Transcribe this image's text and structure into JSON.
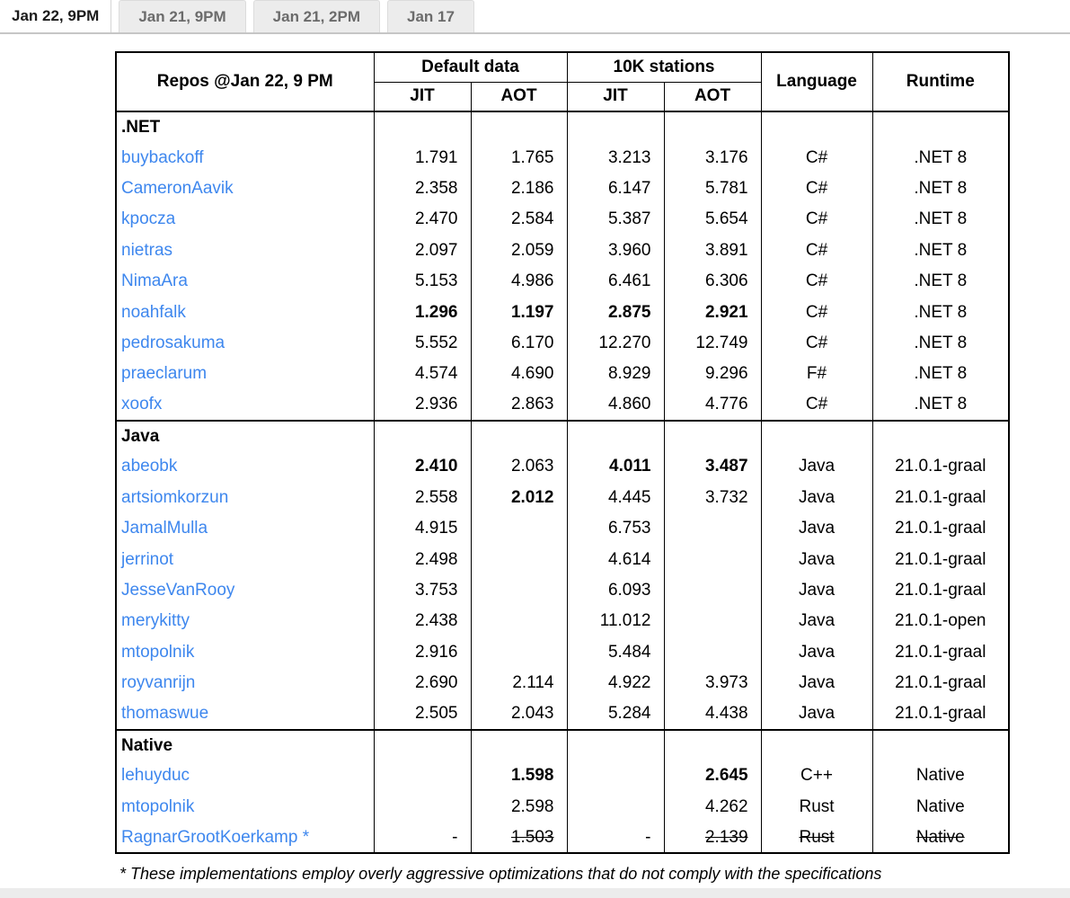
{
  "colors": {
    "link": "#3e87ee"
  },
  "tabs": [
    {
      "label": "Jan 22, 9PM",
      "active": true
    },
    {
      "label": "Jan 21, 9PM",
      "active": false
    },
    {
      "label": "Jan 21, 2PM",
      "active": false
    },
    {
      "label": "Jan 17",
      "active": false
    }
  ],
  "table": {
    "header": {
      "repos": "Repos @Jan 22, 9 PM",
      "group1": "Default data",
      "group2": "10K stations",
      "jit": "JIT",
      "aot": "AOT",
      "language": "Language",
      "runtime": "Runtime"
    },
    "sections": [
      {
        "name": ".NET",
        "rows": [
          {
            "repo": "buybackoff",
            "values": [
              "1.791",
              "1.765",
              "3.213",
              "3.176"
            ],
            "bold": [
              0,
              0,
              0,
              0
            ],
            "language": "C#",
            "runtime": ".NET 8"
          },
          {
            "repo": "CameronAavik",
            "values": [
              "2.358",
              "2.186",
              "6.147",
              "5.781"
            ],
            "bold": [
              0,
              0,
              0,
              0
            ],
            "language": "C#",
            "runtime": ".NET 8"
          },
          {
            "repo": "kpocza",
            "values": [
              "2.470",
              "2.584",
              "5.387",
              "5.654"
            ],
            "bold": [
              0,
              0,
              0,
              0
            ],
            "language": "C#",
            "runtime": ".NET 8"
          },
          {
            "repo": "nietras",
            "values": [
              "2.097",
              "2.059",
              "3.960",
              "3.891"
            ],
            "bold": [
              0,
              0,
              0,
              0
            ],
            "language": "C#",
            "runtime": ".NET 8"
          },
          {
            "repo": "NimaAra",
            "values": [
              "5.153",
              "4.986",
              "6.461",
              "6.306"
            ],
            "bold": [
              0,
              0,
              0,
              0
            ],
            "language": "C#",
            "runtime": ".NET 8"
          },
          {
            "repo": "noahfalk",
            "values": [
              "1.296",
              "1.197",
              "2.875",
              "2.921"
            ],
            "bold": [
              1,
              1,
              1,
              1
            ],
            "language": "C#",
            "runtime": ".NET 8"
          },
          {
            "repo": "pedrosakuma",
            "values": [
              "5.552",
              "6.170",
              "12.270",
              "12.749"
            ],
            "bold": [
              0,
              0,
              0,
              0
            ],
            "language": "C#",
            "runtime": ".NET 8"
          },
          {
            "repo": "praeclarum",
            "values": [
              "4.574",
              "4.690",
              "8.929",
              "9.296"
            ],
            "bold": [
              0,
              0,
              0,
              0
            ],
            "language": "F#",
            "runtime": ".NET 8"
          },
          {
            "repo": "xoofx",
            "values": [
              "2.936",
              "2.863",
              "4.860",
              "4.776"
            ],
            "bold": [
              0,
              0,
              0,
              0
            ],
            "language": "C#",
            "runtime": ".NET 8"
          }
        ]
      },
      {
        "name": "Java",
        "rows": [
          {
            "repo": "abeobk",
            "values": [
              "2.410",
              "2.063",
              "4.011",
              "3.487"
            ],
            "bold": [
              1,
              0,
              1,
              1
            ],
            "language": "Java",
            "runtime": "21.0.1-graal"
          },
          {
            "repo": "artsiomkorzun",
            "values": [
              "2.558",
              "2.012",
              "4.445",
              "3.732"
            ],
            "bold": [
              0,
              1,
              0,
              0
            ],
            "language": "Java",
            "runtime": "21.0.1-graal"
          },
          {
            "repo": "JamalMulla",
            "values": [
              "4.915",
              "",
              "6.753",
              ""
            ],
            "bold": [
              0,
              0,
              0,
              0
            ],
            "language": "Java",
            "runtime": "21.0.1-graal"
          },
          {
            "repo": "jerrinot",
            "values": [
              "2.498",
              "",
              "4.614",
              ""
            ],
            "bold": [
              0,
              0,
              0,
              0
            ],
            "language": "Java",
            "runtime": "21.0.1-graal"
          },
          {
            "repo": "JesseVanRooy",
            "values": [
              "3.753",
              "",
              "6.093",
              ""
            ],
            "bold": [
              0,
              0,
              0,
              0
            ],
            "language": "Java",
            "runtime": "21.0.1-graal"
          },
          {
            "repo": "merykitty",
            "values": [
              "2.438",
              "",
              "11.012",
              ""
            ],
            "bold": [
              0,
              0,
              0,
              0
            ],
            "language": "Java",
            "runtime": "21.0.1-open"
          },
          {
            "repo": "mtopolnik",
            "values": [
              "2.916",
              "",
              "5.484",
              ""
            ],
            "bold": [
              0,
              0,
              0,
              0
            ],
            "language": "Java",
            "runtime": "21.0.1-graal"
          },
          {
            "repo": "royvanrijn",
            "values": [
              "2.690",
              "2.114",
              "4.922",
              "3.973"
            ],
            "bold": [
              0,
              0,
              0,
              0
            ],
            "language": "Java",
            "runtime": "21.0.1-graal"
          },
          {
            "repo": "thomaswue",
            "values": [
              "2.505",
              "2.043",
              "5.284",
              "4.438"
            ],
            "bold": [
              0,
              0,
              0,
              0
            ],
            "language": "Java",
            "runtime": "21.0.1-graal"
          }
        ]
      },
      {
        "name": "Native",
        "rows": [
          {
            "repo": "lehuyduc",
            "values": [
              "",
              "1.598",
              "",
              "2.645"
            ],
            "bold": [
              0,
              1,
              0,
              1
            ],
            "language": "C++",
            "runtime": "Native"
          },
          {
            "repo": "mtopolnik",
            "values": [
              "",
              "2.598",
              "",
              "4.262"
            ],
            "bold": [
              0,
              0,
              0,
              0
            ],
            "language": "Rust",
            "runtime": "Native"
          },
          {
            "repo": "RagnarGrootKoerkamp *",
            "values": [
              "-",
              "1.503",
              "-",
              "2.139"
            ],
            "bold": [
              0,
              0,
              0,
              0
            ],
            "strike_values": [
              0,
              1,
              0,
              1
            ],
            "strike_meta": true,
            "language": "Rust",
            "runtime": "Native"
          }
        ]
      }
    ]
  },
  "footnote": "* These implementations employ overly aggressive optimizations that do not comply with the specifications"
}
